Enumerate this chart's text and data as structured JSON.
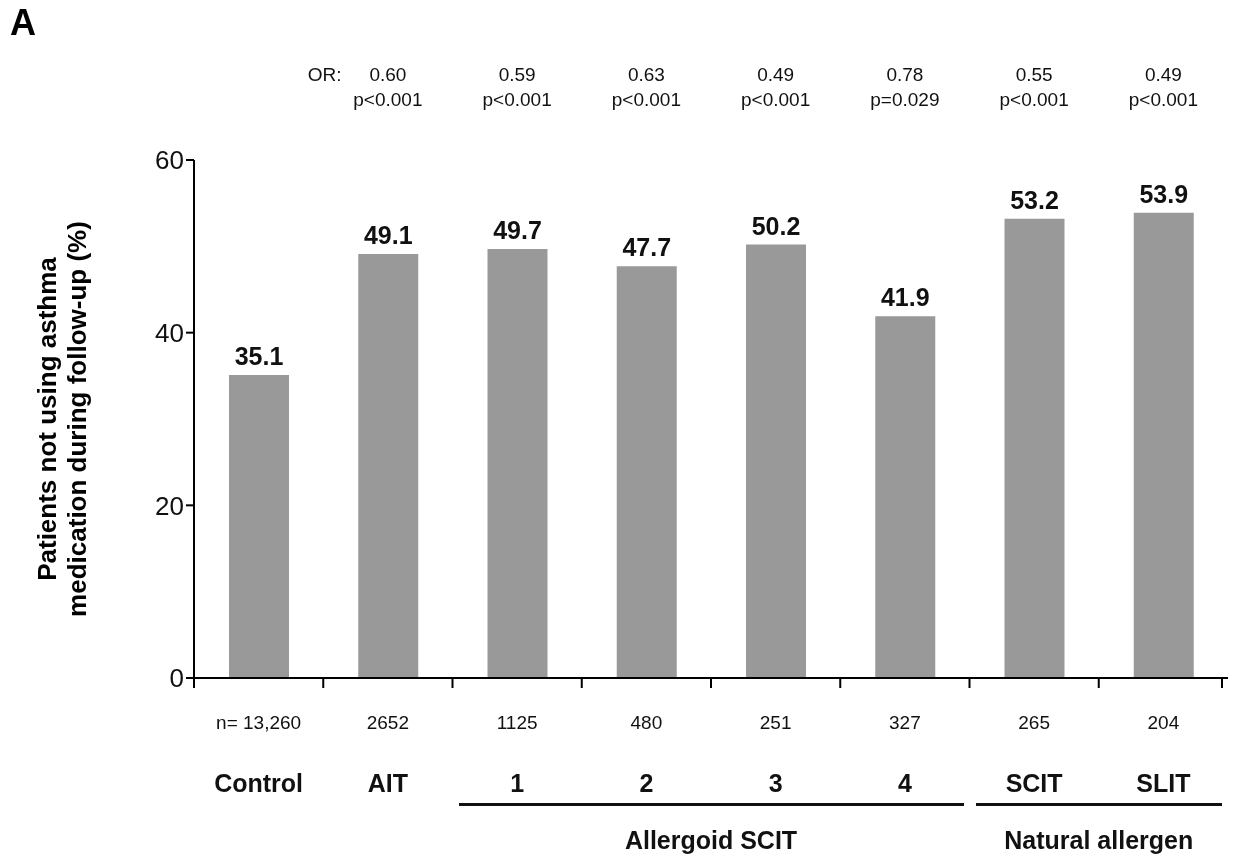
{
  "chart_data": {
    "type": "bar",
    "title": "A",
    "categories": [
      "Control",
      "AIT",
      "1",
      "2",
      "3",
      "4",
      "SCIT",
      "SLIT"
    ],
    "values": [
      35.1,
      49.1,
      49.7,
      47.7,
      50.2,
      41.9,
      53.2,
      53.9
    ],
    "color": "#999999",
    "data_labels": true,
    "ylabel": "Patients not using asthma medication during follow-up (%)",
    "ylim": [
      0,
      60
    ],
    "yticks": [
      0,
      20,
      40,
      60
    ],
    "annotations": [
      "OR:",
      "0.60\np<0.001",
      "0.59\np<0.001",
      "0.63\np<0.001",
      "0.49\np<0.001",
      "0.78\np=0.029",
      "0.55\np<0.001",
      "0.49\np<0.001",
      "n= 13,260",
      "2652",
      "1125",
      "480",
      "251",
      "327",
      "265",
      "204",
      "Allergoid SCIT",
      "Natural allergen"
    ]
  }
}
